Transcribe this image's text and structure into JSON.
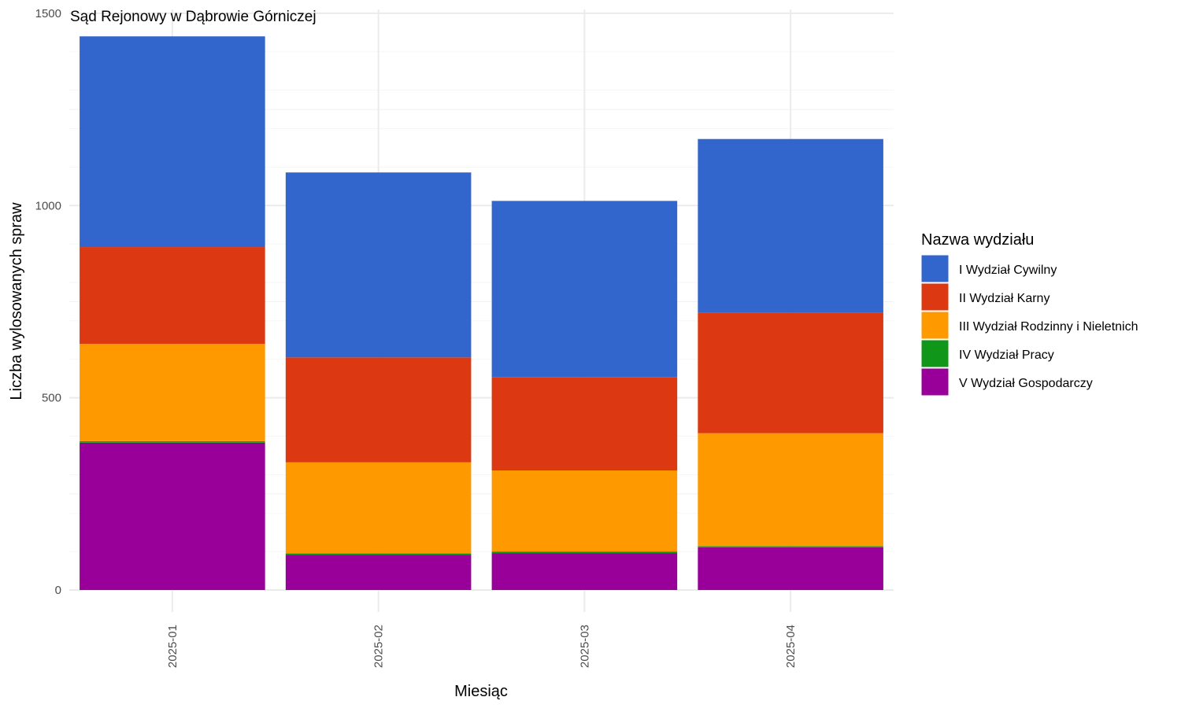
{
  "chart_data": {
    "type": "bar",
    "stacked": true,
    "title": "Sąd Rejonowy w Dąbrowie Górniczej",
    "xlabel": "Miesiąc",
    "ylabel": "Liczba wylosowanych spraw",
    "ylim": [
      0,
      1500
    ],
    "yticks": [
      0,
      500,
      1000,
      1500
    ],
    "grid": true,
    "legend_title": "Nazwa wydziału",
    "legend_position": "right",
    "categories": [
      "2025-01",
      "2025-02",
      "2025-03",
      "2025-04"
    ],
    "series": [
      {
        "name": "V Wydział Gospodarczy",
        "color": "#990099",
        "values": [
          383,
          91,
          96,
          111
        ]
      },
      {
        "name": "IV Wydział Pracy",
        "color": "#109618",
        "values": [
          4,
          4,
          4,
          3
        ]
      },
      {
        "name": "III Wydział Rodzinny i Nieletnich",
        "color": "#FF9900",
        "values": [
          253,
          237,
          211,
          294
        ]
      },
      {
        "name": "II Wydział Karny",
        "color": "#DC3912",
        "values": [
          252,
          273,
          243,
          314
        ]
      },
      {
        "name": "I Wydział Cywilny",
        "color": "#3366CC",
        "values": [
          548,
          481,
          458,
          451
        ]
      }
    ],
    "legend_order": [
      "I Wydział Cywilny",
      "II Wydział Karny",
      "III Wydział Rodzinny i Nieletnich",
      "IV Wydział Pracy",
      "V Wydział Gospodarczy"
    ]
  }
}
